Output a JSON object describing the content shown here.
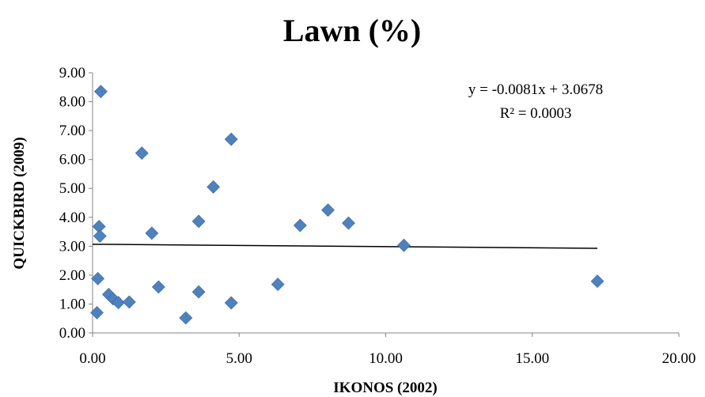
{
  "chart_data": {
    "type": "scatter",
    "title": "Lawn (%)",
    "xlabel": "IKONOS (2002)",
    "ylabel": "QUICKBIRD (2009)",
    "xlim": [
      0,
      20
    ],
    "ylim": [
      0,
      9
    ],
    "xticks": [
      "0.00",
      "5.00",
      "10.00",
      "15.00",
      "20.00"
    ],
    "yticks": [
      "0.00",
      "1.00",
      "2.00",
      "3.00",
      "4.00",
      "5.00",
      "6.00",
      "7.00",
      "8.00",
      "9.00"
    ],
    "marker_color": "#4f81bd",
    "grid": false,
    "points": [
      {
        "x": 0.28,
        "y": 8.35
      },
      {
        "x": 1.68,
        "y": 6.22
      },
      {
        "x": 4.73,
        "y": 6.7
      },
      {
        "x": 4.12,
        "y": 5.05
      },
      {
        "x": 8.03,
        "y": 4.25
      },
      {
        "x": 8.73,
        "y": 3.8
      },
      {
        "x": 7.08,
        "y": 3.72
      },
      {
        "x": 3.62,
        "y": 3.86
      },
      {
        "x": 2.02,
        "y": 3.45
      },
      {
        "x": 0.22,
        "y": 3.68
      },
      {
        "x": 0.25,
        "y": 3.35
      },
      {
        "x": 10.62,
        "y": 3.03
      },
      {
        "x": 0.18,
        "y": 1.88
      },
      {
        "x": 6.32,
        "y": 1.68
      },
      {
        "x": 2.25,
        "y": 1.59
      },
      {
        "x": 3.62,
        "y": 1.42
      },
      {
        "x": 0.55,
        "y": 1.33
      },
      {
        "x": 0.7,
        "y": 1.18
      },
      {
        "x": 0.88,
        "y": 1.05
      },
      {
        "x": 1.25,
        "y": 1.07
      },
      {
        "x": 4.73,
        "y": 1.04
      },
      {
        "x": 0.15,
        "y": 0.7
      },
      {
        "x": 3.18,
        "y": 0.52
      },
      {
        "x": 17.22,
        "y": 1.79
      }
    ],
    "trendline": {
      "slope": -0.0081,
      "intercept": 3.0678,
      "x_range": [
        0,
        17.22
      ],
      "equation": "y = -0.0081x + 3.0678",
      "r_squared": "R² = 0.0003"
    }
  }
}
